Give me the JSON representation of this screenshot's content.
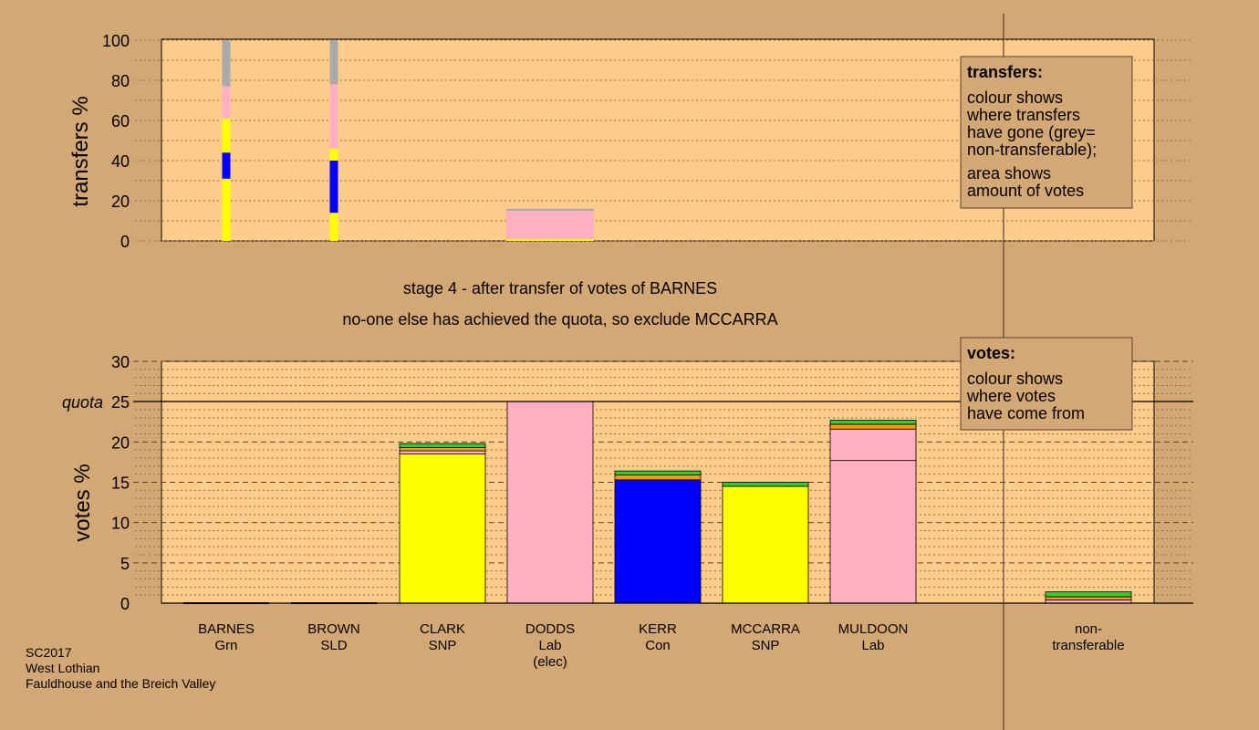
{
  "stage_text": {
    "line1": "stage 4 - after transfer of votes of BARNES",
    "line2": "no-one else has achieved the quota, so exclude MCCARRA"
  },
  "legend_transfers": {
    "title": "transfers:",
    "body": [
      "colour shows",
      "where transfers",
      "have gone (grey=",
      "non-transferable);"
    ],
    "body2": [
      "area shows",
      "amount of votes"
    ]
  },
  "legend_votes": {
    "title": "votes:",
    "body": [
      "colour shows",
      "where votes",
      "have come from"
    ]
  },
  "footer": [
    "SC2017",
    "West Lothian",
    "Fauldhouse and the Breich Valley"
  ],
  "colors": {
    "background": "#d4a874",
    "plot": "#ffcc8c",
    "snp": "#ffff00",
    "con": "#0000ff",
    "lab": "#ffb0c0",
    "grn": "#33cc33",
    "sld": "#ff9900",
    "nontransferable": "#aaaaaa"
  },
  "chart_data": [
    {
      "type": "bar",
      "ylabel": "transfers %",
      "ylim": [
        0,
        100
      ],
      "yticks": [
        0,
        20,
        40,
        60,
        80,
        100
      ],
      "categories": [
        "BARNES",
        "BROWN",
        "CLARK",
        "DODDS",
        "KERR",
        "MCCARRA",
        "MULDOON",
        "non-transferable"
      ],
      "series": [
        {
          "category": "BARNES",
          "segments": [
            {
              "party": "snp",
              "value": 31
            },
            {
              "party": "con",
              "value": 13
            },
            {
              "party": "snp",
              "value": 17
            },
            {
              "party": "lab",
              "value": 16
            },
            {
              "party": "nontransferable",
              "value": 23
            }
          ]
        },
        {
          "category": "BROWN",
          "segments": [
            {
              "party": "snp",
              "value": 14
            },
            {
              "party": "con",
              "value": 26
            },
            {
              "party": "snp",
              "value": 6
            },
            {
              "party": "lab",
              "value": 32
            },
            {
              "party": "nontransferable",
              "value": 22
            }
          ]
        },
        {
          "category": "DODDS",
          "segments": [
            {
              "party": "snp",
              "value": 1
            },
            {
              "party": "lab",
              "value": 14
            },
            {
              "party": "nontransferable",
              "value": 1
            }
          ]
        }
      ]
    },
    {
      "type": "bar",
      "ylabel": "votes %",
      "ylim": [
        0,
        30
      ],
      "yticks": [
        0,
        5,
        10,
        15,
        20,
        25,
        30
      ],
      "quota": {
        "label": "quota",
        "value": 25
      },
      "categories": [
        {
          "name": "BARNES",
          "party": "Grn"
        },
        {
          "name": "BROWN",
          "party": "SLD"
        },
        {
          "name": "CLARK",
          "party": "SNP"
        },
        {
          "name": "DODDS",
          "party": "Lab",
          "note": "(elec)"
        },
        {
          "name": "KERR",
          "party": "Con"
        },
        {
          "name": "MCCARRA",
          "party": "SNP"
        },
        {
          "name": "MULDOON",
          "party": "Lab"
        },
        {
          "name": "non-",
          "party": "transferable"
        }
      ],
      "stacks": [
        {
          "category": "BARNES",
          "segments": []
        },
        {
          "category": "BROWN",
          "segments": []
        },
        {
          "category": "CLARK",
          "segments": [
            {
              "party": "snp",
              "value": 18.5
            },
            {
              "party": "lab",
              "value": 0.4
            },
            {
              "party": "sld",
              "value": 0.4
            },
            {
              "party": "grn",
              "value": 0.5
            }
          ]
        },
        {
          "category": "DODDS",
          "segments": [
            {
              "party": "lab",
              "value": 25.0
            }
          ]
        },
        {
          "category": "KERR",
          "segments": [
            {
              "party": "con",
              "value": 15.3
            },
            {
              "party": "sld",
              "value": 0.6
            },
            {
              "party": "grn",
              "value": 0.5
            }
          ]
        },
        {
          "category": "MCCARRA",
          "segments": [
            {
              "party": "snp",
              "value": 14.5
            },
            {
              "party": "grn",
              "value": 0.5
            }
          ]
        },
        {
          "category": "MULDOON",
          "segments": [
            {
              "party": "lab",
              "value": 17.7
            },
            {
              "party": "lab",
              "value": 3.9
            },
            {
              "party": "sld",
              "value": 0.6
            },
            {
              "party": "grn",
              "value": 0.5
            }
          ]
        },
        {
          "category": "non-transferable",
          "segments": [
            {
              "party": "lab",
              "value": 0.4
            },
            {
              "party": "sld",
              "value": 0.4
            },
            {
              "party": "grn",
              "value": 0.6
            }
          ]
        }
      ]
    }
  ]
}
